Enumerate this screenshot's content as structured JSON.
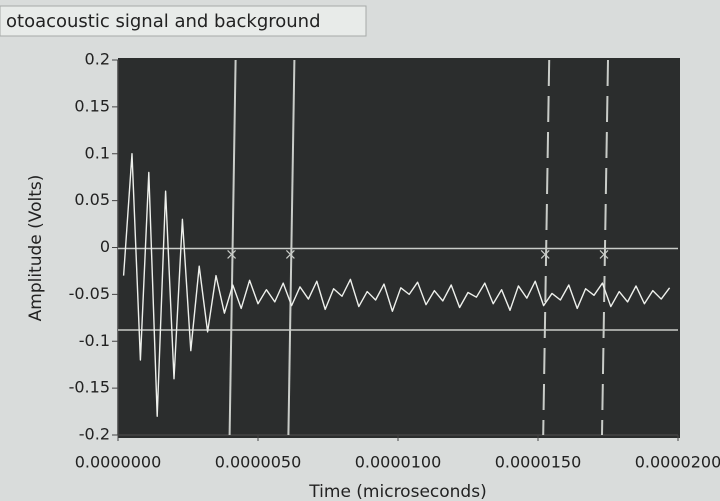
{
  "chart_data": {
    "type": "line",
    "title": "otoacoustic signal and background",
    "x_label": "Time (microseconds)",
    "y_label": "Amplitude (Volts)",
    "x": [
      2e-07,
      5e-07,
      8e-07,
      1.1e-06,
      1.4e-06,
      1.7e-06,
      2e-06,
      2.3e-06,
      2.6e-06,
      2.9e-06,
      3.2e-06,
      3.5e-06,
      3.8e-06,
      4.1e-06,
      4.4e-06,
      4.7e-06,
      5e-06,
      5.3e-06,
      5.6e-06,
      5.9e-06,
      6.2e-06,
      6.5e-06,
      6.8e-06,
      7.1e-06,
      7.4e-06,
      7.7e-06,
      8e-06,
      8.3e-06,
      8.6e-06,
      8.9e-06,
      9.2e-06,
      9.5e-06,
      9.8e-06,
      1.01e-05,
      1.04e-05,
      1.07e-05,
      1.1e-05,
      1.13e-05,
      1.16e-05,
      1.19e-05,
      1.22e-05,
      1.25e-05,
      1.28e-05,
      1.31e-05,
      1.34e-05,
      1.37e-05,
      1.4e-05,
      1.43e-05,
      1.46e-05,
      1.49e-05,
      1.52e-05,
      1.55e-05,
      1.58e-05,
      1.61e-05,
      1.64e-05,
      1.67e-05,
      1.7e-05,
      1.73e-05,
      1.76e-05,
      1.79e-05,
      1.82e-05,
      1.85e-05,
      1.88e-05,
      1.91e-05,
      1.94e-05,
      1.97e-05
    ],
    "values": [
      -0.03,
      0.1,
      -0.12,
      0.08,
      -0.18,
      0.06,
      -0.14,
      0.03,
      -0.11,
      -0.02,
      -0.09,
      -0.03,
      -0.07,
      -0.04,
      -0.065,
      -0.035,
      -0.06,
      -0.045,
      -0.058,
      -0.038,
      -0.062,
      -0.042,
      -0.055,
      -0.036,
      -0.066,
      -0.044,
      -0.052,
      -0.034,
      -0.063,
      -0.047,
      -0.056,
      -0.039,
      -0.068,
      -0.043,
      -0.05,
      -0.037,
      -0.061,
      -0.046,
      -0.057,
      -0.04,
      -0.064,
      -0.048,
      -0.053,
      -0.038,
      -0.06,
      -0.045,
      -0.067,
      -0.041,
      -0.054,
      -0.036,
      -0.062,
      -0.049,
      -0.056,
      -0.04,
      -0.065,
      -0.044,
      -0.051,
      -0.038,
      -0.063,
      -0.047,
      -0.058,
      -0.041,
      -0.06,
      -0.046,
      -0.055,
      -0.043
    ],
    "color": "#eef0ec",
    "xlim": [
      0,
      2e-05
    ],
    "ylim": [
      -0.2,
      0.2
    ],
    "xticks": [
      {
        "value": 0,
        "label": "0.0000000"
      },
      {
        "value": 5e-06,
        "label": "0.0000050"
      },
      {
        "value": 1e-05,
        "label": "0.0000100"
      },
      {
        "value": 1.5e-05,
        "label": "0.0000150"
      },
      {
        "value": 2e-05,
        "label": "0.0000200"
      }
    ],
    "yticks": [
      0.2,
      0.15,
      0.1,
      0.05,
      0,
      -0.05,
      -0.1,
      -0.15,
      -0.2
    ],
    "vertical_cursors": [
      4.2e-06,
      6.3e-06,
      1.54e-05,
      1.75e-05
    ],
    "vertical_cursor_dashed": [
      false,
      false,
      true,
      true
    ],
    "horizontal_cursors": [
      -0.001,
      -0.088
    ],
    "cursor_color": "#c9ccc8"
  }
}
